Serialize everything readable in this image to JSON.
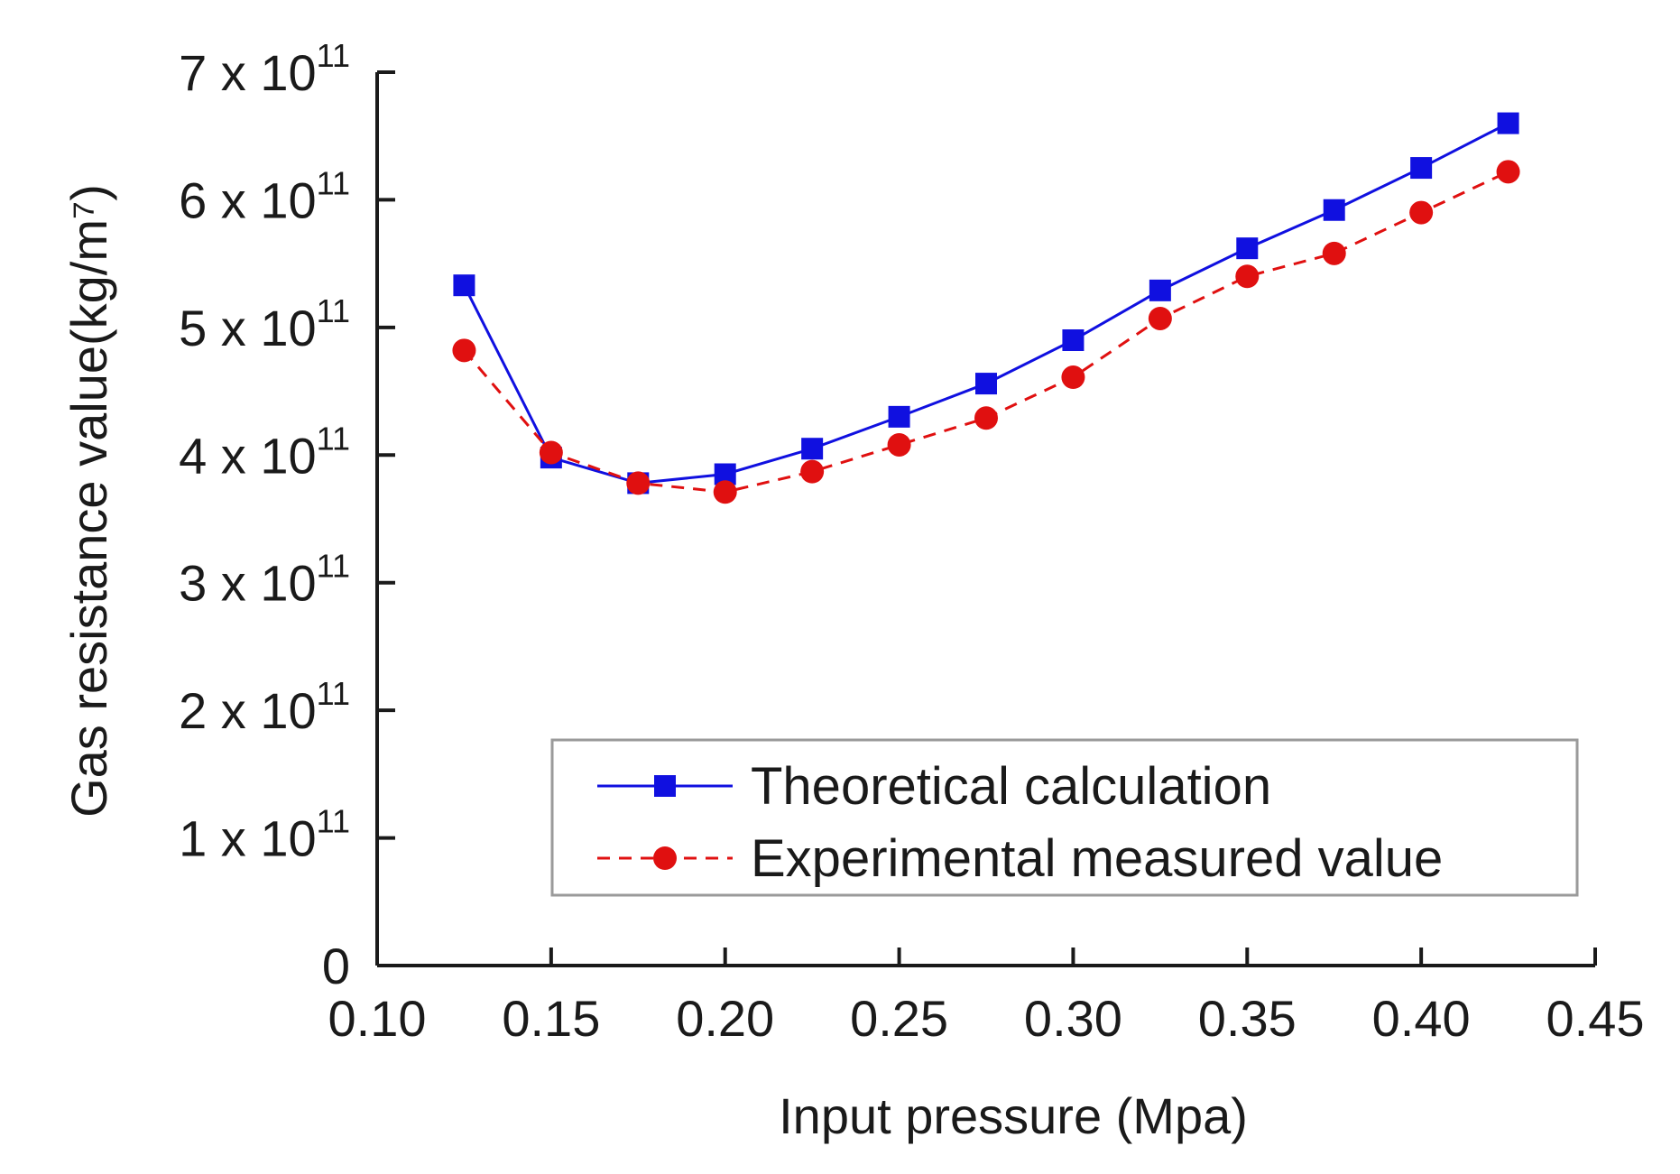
{
  "chart_data": {
    "type": "line",
    "title": "",
    "xlabel": "Input pressure (Mpa)",
    "ylabel": "Gas resistance value(kg/m⁷)",
    "xlim": [
      0.1,
      0.45
    ],
    "ylim": [
      0,
      700000000000.0
    ],
    "x_ticks": [
      0.1,
      0.15,
      0.2,
      0.25,
      0.3,
      0.35,
      0.4,
      0.45
    ],
    "x_tick_labels": [
      "0.10",
      "0.15",
      "0.20",
      "0.25",
      "0.30",
      "0.35",
      "0.40",
      "0.45"
    ],
    "y_ticks": [
      0,
      100000000000.0,
      200000000000.0,
      300000000000.0,
      400000000000.0,
      500000000000.0,
      600000000000.0,
      700000000000.0
    ],
    "y_tick_labels": [
      {
        "mantissa": "0",
        "base": "",
        "exponent": ""
      },
      {
        "mantissa": "1 x ",
        "base": "10",
        "exponent": "11"
      },
      {
        "mantissa": "2 x ",
        "base": "10",
        "exponent": "11"
      },
      {
        "mantissa": "3 x ",
        "base": "10",
        "exponent": "11"
      },
      {
        "mantissa": "4 x ",
        "base": "10",
        "exponent": "11"
      },
      {
        "mantissa": "5 x ",
        "base": "10",
        "exponent": "11"
      },
      {
        "mantissa": "6 x ",
        "base": "10",
        "exponent": "11"
      },
      {
        "mantissa": "7 x ",
        "base": "10",
        "exponent": "11"
      }
    ],
    "grid": false,
    "legend_position": "bottom-right",
    "x": [
      0.125,
      0.15,
      0.175,
      0.2,
      0.225,
      0.25,
      0.275,
      0.3,
      0.325,
      0.35,
      0.375,
      0.4,
      0.425
    ],
    "series": [
      {
        "name": "Theoretical calculation",
        "color": "#1010e0",
        "line_style": "solid",
        "marker": "square",
        "values": [
          533000000000.0,
          398000000000.0,
          378000000000.0,
          385000000000.0,
          405000000000.0,
          430000000000.0,
          456000000000.0,
          490000000000.0,
          529000000000.0,
          562000000000.0,
          592000000000.0,
          625000000000.0,
          660000000000.0
        ]
      },
      {
        "name": "Experimental measured value",
        "color": "#e01010",
        "line_style": "dashed",
        "marker": "circle",
        "values": [
          482000000000.0,
          402000000000.0,
          378000000000.0,
          371000000000.0,
          387000000000.0,
          408000000000.0,
          429000000000.0,
          461000000000.0,
          507000000000.0,
          540000000000.0,
          558000000000.0,
          590000000000.0,
          622000000000.0
        ]
      }
    ]
  }
}
